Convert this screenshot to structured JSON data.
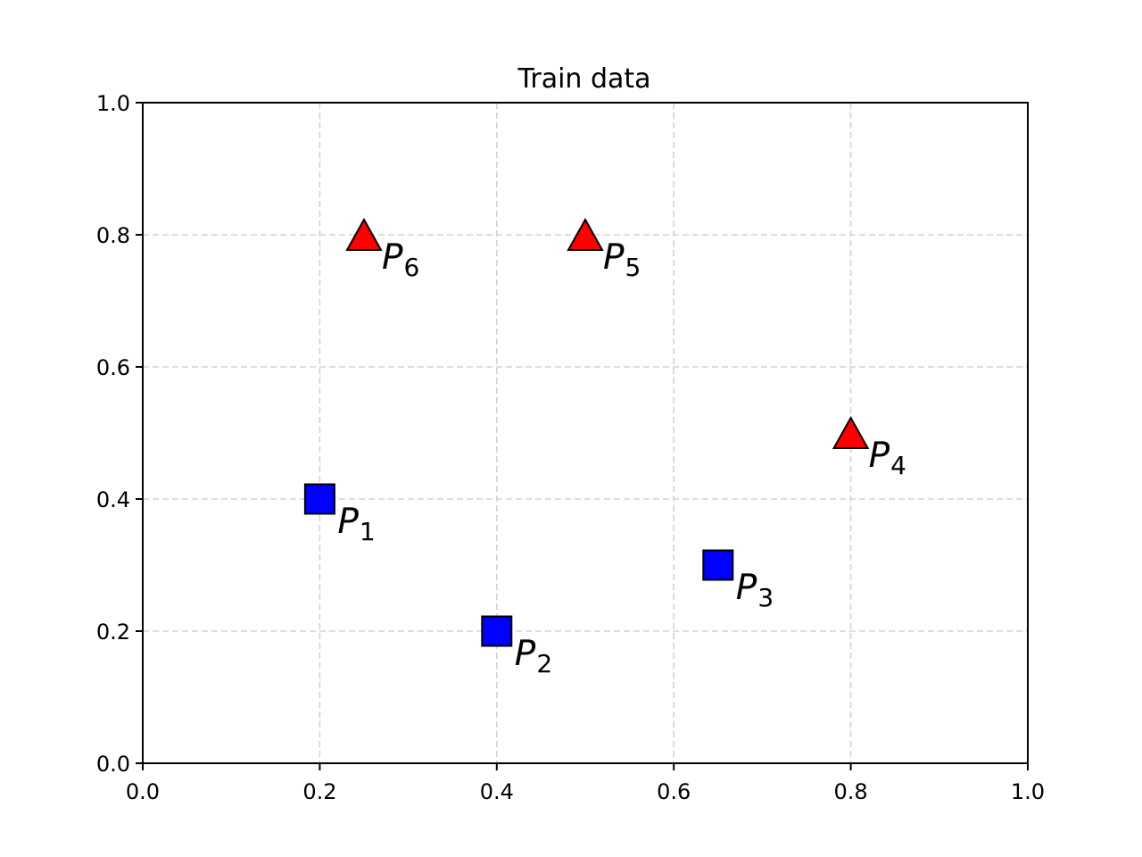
{
  "chart_data": {
    "type": "scatter",
    "title": "Train data",
    "xlabel": "",
    "ylabel": "",
    "xlim": [
      0.0,
      1.0
    ],
    "ylim": [
      0.0,
      1.0
    ],
    "grid": true,
    "xticks": [
      "0.0",
      "0.2",
      "0.4",
      "0.6",
      "0.8",
      "1.0"
    ],
    "yticks": [
      "0.0",
      "0.2",
      "0.4",
      "0.6",
      "0.8",
      "1.0"
    ],
    "colors": {
      "square": "#0000ff",
      "triangle": "#ff0000",
      "edge": "#000000",
      "grid": "#d3d3d3"
    },
    "points": [
      {
        "label": "P",
        "sub": "1",
        "x": 0.2,
        "y": 0.4,
        "marker": "square"
      },
      {
        "label": "P",
        "sub": "2",
        "x": 0.4,
        "y": 0.2,
        "marker": "square"
      },
      {
        "label": "P",
        "sub": "3",
        "x": 0.65,
        "y": 0.3,
        "marker": "square"
      },
      {
        "label": "P",
        "sub": "4",
        "x": 0.8,
        "y": 0.5,
        "marker": "triangle"
      },
      {
        "label": "P",
        "sub": "5",
        "x": 0.5,
        "y": 0.8,
        "marker": "triangle"
      },
      {
        "label": "P",
        "sub": "6",
        "x": 0.25,
        "y": 0.8,
        "marker": "triangle"
      }
    ]
  }
}
